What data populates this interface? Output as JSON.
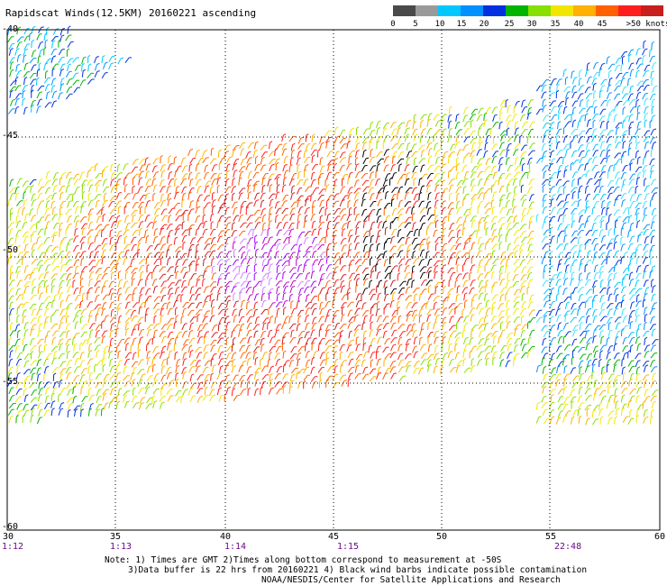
{
  "title": "Rapidscat Winds(12.5KM) 20160221 ascending",
  "legend": {
    "colors": [
      "#4a4a4a",
      "#9a9a9a",
      "#00c8ff",
      "#0090ff",
      "#0030e0",
      "#00b400",
      "#88e000",
      "#f2e600",
      "#ffb000",
      "#ff6000",
      "#ff1e1e",
      "#c81e1e",
      "#8c4a28",
      "#d080ff",
      "#c000c0",
      "#a000ff",
      "#200060"
    ],
    "labels": [
      "0",
      "5",
      "10",
      "15",
      "20",
      "25",
      "30",
      "35",
      "40",
      "45",
      ">50 knots"
    ]
  },
  "axes": {
    "lon_ticks": [
      "30",
      "35",
      "40",
      "45",
      "50",
      "55",
      "60"
    ],
    "lat_ticks": [
      "-40",
      "-45",
      "-50",
      "-55",
      "-60"
    ],
    "time_labels": [
      "1:12",
      "1:13",
      "1:14",
      "1:15",
      "22:48"
    ]
  },
  "notes": [
    "Note: 1) Times are GMT 2)Times along bottom correspond to measurement at -50S",
    "3)Data buffer is 22 hrs from 20160221 4) Black wind barbs indicate possible contamination",
    "NOAA/NESDIS/Center for Satellite Applications and Research"
  ]
}
